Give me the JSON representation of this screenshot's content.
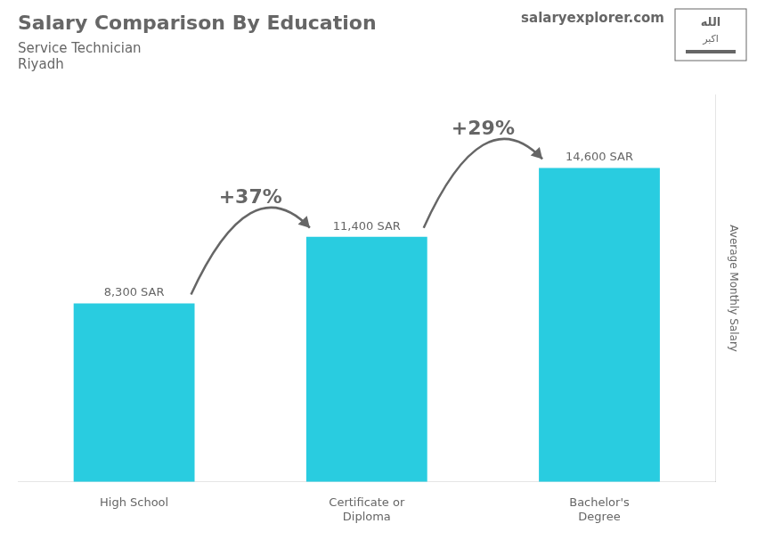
{
  "chart_data": {
    "type": "bar",
    "title": "Salary Comparison By Education",
    "subtitle": [
      "Service Technician",
      "Riyadh"
    ],
    "ylabel": "Average Monthly Salary",
    "categories": [
      "High School",
      "Certificate or\nDiploma",
      "Bachelor's\nDegree"
    ],
    "values": [
      8300,
      11400,
      14600
    ],
    "value_labels": [
      "8,300 SAR",
      "11,400 SAR",
      "14,600 SAR"
    ],
    "data_labels": true,
    "color": "#29cce0",
    "ylim": [
      0,
      18000
    ],
    "tick_labels": "x",
    "grid": false,
    "annotations": {
      "changes": [
        "+37%",
        "+29%"
      ],
      "site": "salaryexplorer.com",
      "flag": [
        "الله",
        "اكبر"
      ]
    }
  }
}
